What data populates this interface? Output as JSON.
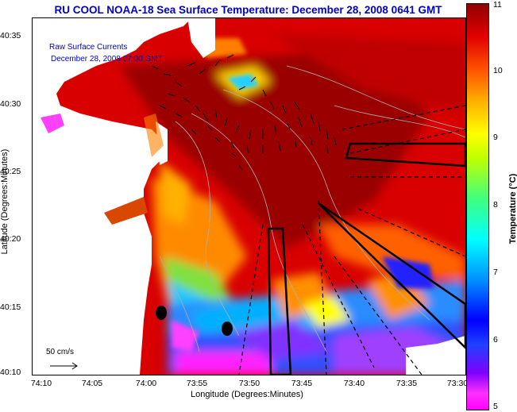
{
  "title": "RU COOL  NOAA-18  Sea Surface Temperature:  December 28, 2008 0641 GMT",
  "legend": {
    "raw_currents": "Raw Surface Currents",
    "currents_time": "December 28, 2008 07:00 GMT",
    "scale_label": "50 cm/s"
  },
  "x_axis": {
    "label": "Longitude (Degrees:Minutes)",
    "ticks": [
      "74:10",
      "74:05",
      "74:00",
      "73:55",
      "73:50",
      "73:45",
      "73:40",
      "73:35",
      "73:30"
    ]
  },
  "y_axis": {
    "label": "Latitude (Degrees:Minutes)",
    "ticks": [
      "40:35",
      "40:30",
      "40:25",
      "40:20",
      "40:15",
      "40:10"
    ]
  },
  "colorbar": {
    "label": "Temperature (°C)",
    "ticks": [
      "11",
      "10",
      "9",
      "8",
      "7",
      "6",
      "5"
    ]
  },
  "colors": {
    "title": "#0000cc",
    "land": "#ffffff",
    "warm": "#b00000",
    "cool": "#ff00ff"
  }
}
